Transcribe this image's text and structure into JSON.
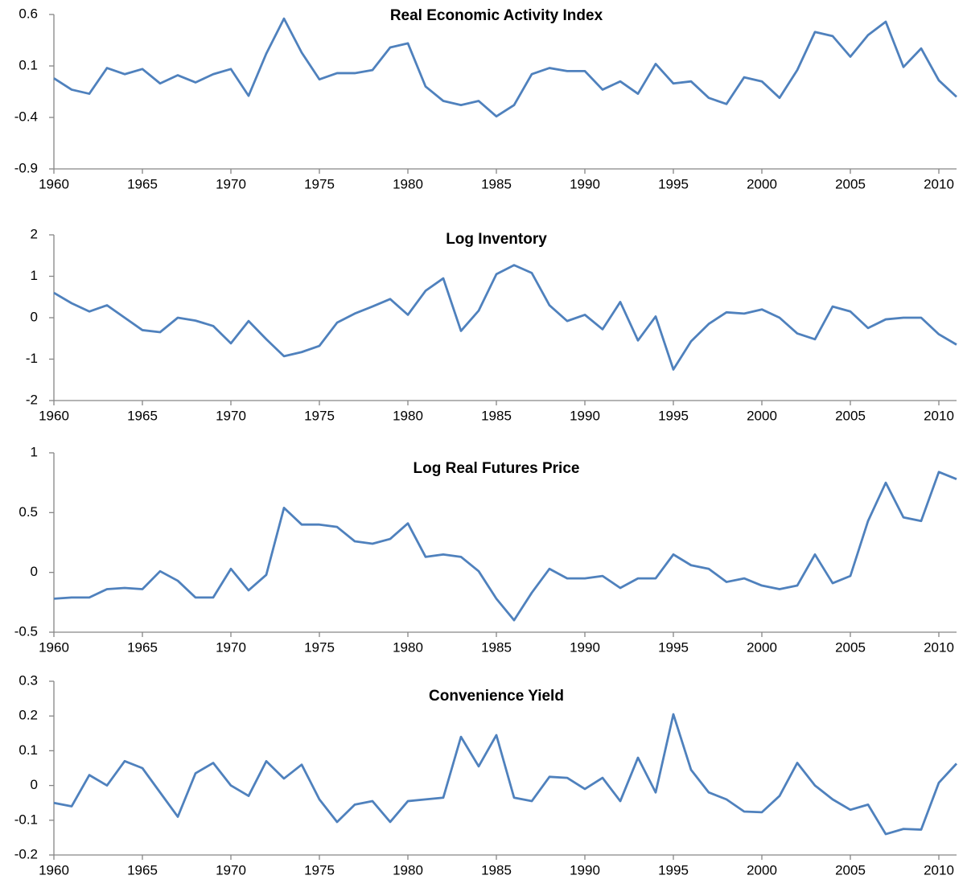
{
  "chart_data": [
    {
      "type": "line",
      "title": "Real Economic Activity Index",
      "color": "#4f81bd",
      "x": [
        1960,
        1961,
        1962,
        1963,
        1964,
        1965,
        1966,
        1967,
        1968,
        1969,
        1970,
        1971,
        1972,
        1973,
        1974,
        1975,
        1976,
        1977,
        1978,
        1979,
        1980,
        1981,
        1982,
        1983,
        1984,
        1985,
        1986,
        1987,
        1988,
        1989,
        1990,
        1991,
        1992,
        1993,
        1994,
        1995,
        1996,
        1997,
        1998,
        1999,
        2000,
        2001,
        2002,
        2003,
        2004,
        2005,
        2006,
        2007,
        2008,
        2009,
        2010,
        2011
      ],
      "values": [
        -0.02,
        -0.13,
        -0.17,
        0.08,
        0.02,
        0.07,
        -0.07,
        0.01,
        -0.06,
        0.02,
        0.07,
        -0.19,
        0.22,
        0.56,
        0.23,
        -0.03,
        0.03,
        0.03,
        0.06,
        0.28,
        0.32,
        -0.1,
        -0.24,
        -0.28,
        -0.24,
        -0.39,
        -0.28,
        0.02,
        0.08,
        0.05,
        0.05,
        -0.13,
        -0.05,
        -0.17,
        0.12,
        -0.07,
        -0.05,
        -0.21,
        -0.27,
        -0.01,
        -0.05,
        -0.21,
        0.06,
        0.43,
        0.39,
        0.19,
        0.4,
        0.53,
        0.09,
        0.27,
        -0.04,
        -0.2
      ],
      "xlim": [
        1960,
        2011
      ],
      "xticks": [
        1960,
        1965,
        1970,
        1975,
        1980,
        1985,
        1990,
        1995,
        2000,
        2005,
        2010
      ],
      "ylim": [
        -0.9,
        0.6
      ],
      "yticks": [
        -0.9,
        -0.4,
        0.1,
        0.6
      ]
    },
    {
      "type": "line",
      "title": "Log Inventory",
      "color": "#4f81bd",
      "x": [
        1960,
        1961,
        1962,
        1963,
        1964,
        1965,
        1966,
        1967,
        1968,
        1969,
        1970,
        1971,
        1972,
        1973,
        1974,
        1975,
        1976,
        1977,
        1978,
        1979,
        1980,
        1981,
        1982,
        1983,
        1984,
        1985,
        1986,
        1987,
        1988,
        1989,
        1990,
        1991,
        1992,
        1993,
        1994,
        1995,
        1996,
        1997,
        1998,
        1999,
        2000,
        2001,
        2002,
        2003,
        2004,
        2005,
        2006,
        2007,
        2008,
        2009,
        2010,
        2011
      ],
      "values": [
        0.6,
        0.35,
        0.15,
        0.3,
        0.0,
        -0.3,
        -0.35,
        0.0,
        -0.07,
        -0.2,
        -0.62,
        -0.08,
        -0.52,
        -0.93,
        -0.83,
        -0.68,
        -0.12,
        0.1,
        0.27,
        0.45,
        0.07,
        0.65,
        0.95,
        -0.32,
        0.17,
        1.05,
        1.27,
        1.08,
        0.3,
        -0.08,
        0.07,
        -0.28,
        0.38,
        -0.55,
        0.03,
        -1.25,
        -0.57,
        -0.15,
        0.13,
        0.1,
        0.2,
        0.0,
        -0.38,
        -0.52,
        0.27,
        0.15,
        -0.25,
        -0.04,
        0.0,
        0.0,
        -0.4,
        -0.65
      ],
      "xlim": [
        1960,
        2011
      ],
      "xticks": [
        1960,
        1965,
        1970,
        1975,
        1980,
        1985,
        1990,
        1995,
        2000,
        2005,
        2010
      ],
      "ylim": [
        -2,
        2
      ],
      "yticks": [
        -2,
        -1,
        0,
        1,
        2
      ]
    },
    {
      "type": "line",
      "title": "Log Real Futures Price",
      "color": "#4f81bd",
      "x": [
        1960,
        1961,
        1962,
        1963,
        1964,
        1965,
        1966,
        1967,
        1968,
        1969,
        1970,
        1971,
        1972,
        1973,
        1974,
        1975,
        1976,
        1977,
        1978,
        1979,
        1980,
        1981,
        1982,
        1983,
        1984,
        1985,
        1986,
        1987,
        1988,
        1989,
        1990,
        1991,
        1992,
        1993,
        1994,
        1995,
        1996,
        1997,
        1998,
        1999,
        2000,
        2001,
        2002,
        2003,
        2004,
        2005,
        2006,
        2007,
        2008,
        2009,
        2010,
        2011
      ],
      "values": [
        -0.22,
        -0.21,
        -0.21,
        -0.14,
        -0.13,
        -0.14,
        0.01,
        -0.07,
        -0.21,
        -0.21,
        0.03,
        -0.15,
        -0.02,
        0.54,
        0.4,
        0.4,
        0.38,
        0.26,
        0.24,
        0.28,
        0.41,
        0.13,
        0.15,
        0.13,
        0.01,
        -0.22,
        -0.4,
        -0.17,
        0.03,
        -0.05,
        -0.05,
        -0.03,
        -0.13,
        -0.05,
        -0.05,
        0.15,
        0.06,
        0.03,
        -0.08,
        -0.05,
        -0.11,
        -0.14,
        -0.11,
        0.15,
        -0.09,
        -0.03,
        0.43,
        0.75,
        0.46,
        0.43,
        0.84,
        0.78
      ],
      "xlim": [
        1960,
        2011
      ],
      "xticks": [
        1960,
        1965,
        1970,
        1975,
        1980,
        1985,
        1990,
        1995,
        2000,
        2005,
        2010
      ],
      "ylim": [
        -0.5,
        1
      ],
      "yticks": [
        -0.5,
        0,
        0.5,
        1
      ]
    },
    {
      "type": "line",
      "title": "Convenience Yield",
      "color": "#4f81bd",
      "x": [
        1960,
        1961,
        1962,
        1963,
        1964,
        1965,
        1966,
        1967,
        1968,
        1969,
        1970,
        1971,
        1972,
        1973,
        1974,
        1975,
        1976,
        1977,
        1978,
        1979,
        1980,
        1981,
        1982,
        1983,
        1984,
        1985,
        1986,
        1987,
        1988,
        1989,
        1990,
        1991,
        1992,
        1993,
        1994,
        1995,
        1996,
        1997,
        1998,
        1999,
        2000,
        2001,
        2002,
        2003,
        2004,
        2005,
        2006,
        2007,
        2008,
        2009,
        2010,
        2011
      ],
      "values": [
        -0.05,
        -0.06,
        0.03,
        0.0,
        0.07,
        0.05,
        -0.02,
        -0.09,
        0.035,
        0.065,
        0.0,
        -0.03,
        0.07,
        0.02,
        0.06,
        -0.04,
        -0.105,
        -0.055,
        -0.045,
        -0.105,
        -0.045,
        -0.04,
        -0.035,
        0.14,
        0.055,
        0.145,
        -0.035,
        -0.045,
        0.025,
        0.022,
        -0.01,
        0.022,
        -0.045,
        0.08,
        -0.02,
        0.205,
        0.045,
        -0.02,
        -0.04,
        -0.075,
        -0.077,
        -0.03,
        0.065,
        0.0,
        -0.04,
        -0.07,
        -0.055,
        -0.14,
        -0.125,
        -0.127,
        0.008,
        0.063
      ],
      "xlim": [
        1960,
        2011
      ],
      "xticks": [
        1960,
        1965,
        1970,
        1975,
        1980,
        1985,
        1990,
        1995,
        2000,
        2005,
        2010
      ],
      "ylim": [
        -0.2,
        0.3
      ],
      "yticks": [
        -0.2,
        -0.1,
        0,
        0.1,
        0.2,
        0.3
      ]
    }
  ]
}
